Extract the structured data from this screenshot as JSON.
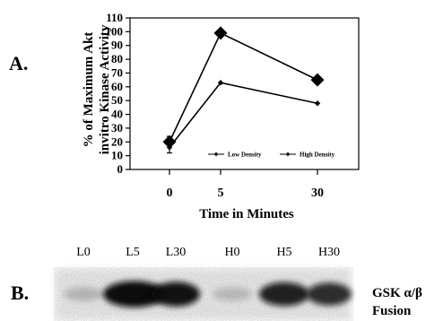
{
  "panels": {
    "a_label": "A.",
    "b_label": "B."
  },
  "chart_data": {
    "type": "line",
    "title": "",
    "xlabel": "Time in Minutes",
    "ylabel_lines": [
      "% of Maximum Akt",
      "invitro Kinase Activity"
    ],
    "x": [
      "0",
      "5",
      "30"
    ],
    "ylim": [
      0,
      110
    ],
    "yticks": [
      0,
      10,
      20,
      30,
      40,
      50,
      60,
      70,
      80,
      90,
      100,
      110
    ],
    "grid": false,
    "legend_position": "inside-bottom",
    "series": [
      {
        "name": "Low Density",
        "values": [
          20,
          99,
          65
        ],
        "marker": "diamond-large",
        "color": "#000000"
      },
      {
        "name": "High Density",
        "values": [
          16,
          63,
          48
        ],
        "marker": "diamond-small",
        "color": "#000000"
      }
    ],
    "error_bars": [
      {
        "x": "0",
        "low": 12,
        "high": 24
      }
    ]
  },
  "blot": {
    "lanes": [
      {
        "label": "L0",
        "intensity": 0.08
      },
      {
        "label": "L5",
        "intensity": 0.95
      },
      {
        "label": "L30",
        "intensity": 0.85
      },
      {
        "label": "H0",
        "intensity": 0.06
      },
      {
        "label": "H5",
        "intensity": 0.78
      },
      {
        "label": "H30",
        "intensity": 0.72
      }
    ],
    "caption_lines": [
      "GSK α/β",
      "Fusion"
    ],
    "band_color": "#101010"
  }
}
